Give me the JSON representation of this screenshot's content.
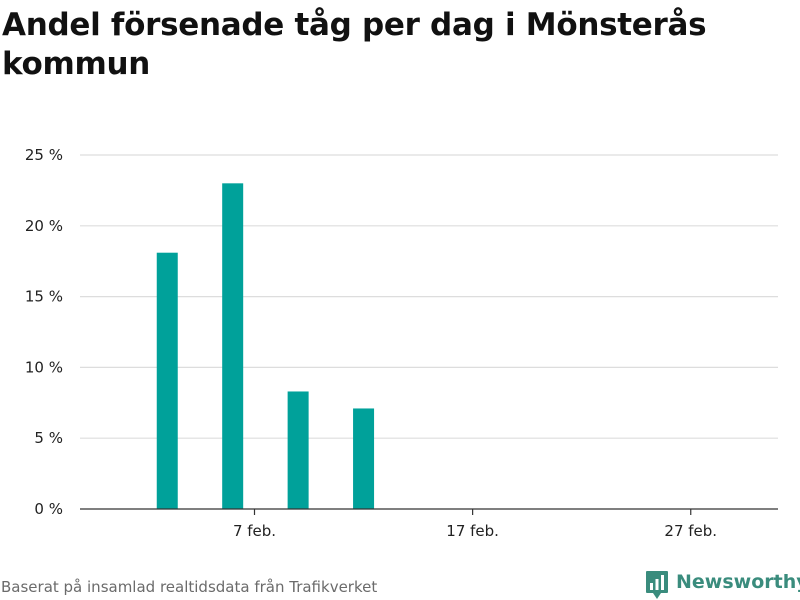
{
  "title": "Andel försenade tåg per dag i Mönsterås kommun",
  "source": "Baserat på insamlad realtidsdata från Trafikverket",
  "logo": {
    "text": "Newsworthy",
    "color": "#3a8c7d"
  },
  "colors": {
    "bar": "#00a19a",
    "grid": "#dddddd",
    "axis": "#333333"
  },
  "chart_data": {
    "type": "bar",
    "x": [
      "2021-02-03",
      "2021-02-06",
      "2021-02-09",
      "2021-02-12"
    ],
    "values": [
      18.1,
      23.0,
      8.3,
      7.1
    ],
    "xlim": [
      "2021-01-30",
      "2021-03-03"
    ],
    "x_ticks": [
      {
        "date": "2021-02-07",
        "label": "7 feb."
      },
      {
        "date": "2021-02-17",
        "label": "17 feb."
      },
      {
        "date": "2021-02-27",
        "label": "27 feb."
      }
    ],
    "ylim": [
      0,
      25
    ],
    "y_ticks": [
      0,
      5,
      10,
      15,
      20,
      25
    ],
    "y_tick_labels": [
      "0 %",
      "5 %",
      "10 %",
      "15 %",
      "20 %",
      "25 %"
    ],
    "grid": true,
    "xlabel": "",
    "ylabel": ""
  }
}
